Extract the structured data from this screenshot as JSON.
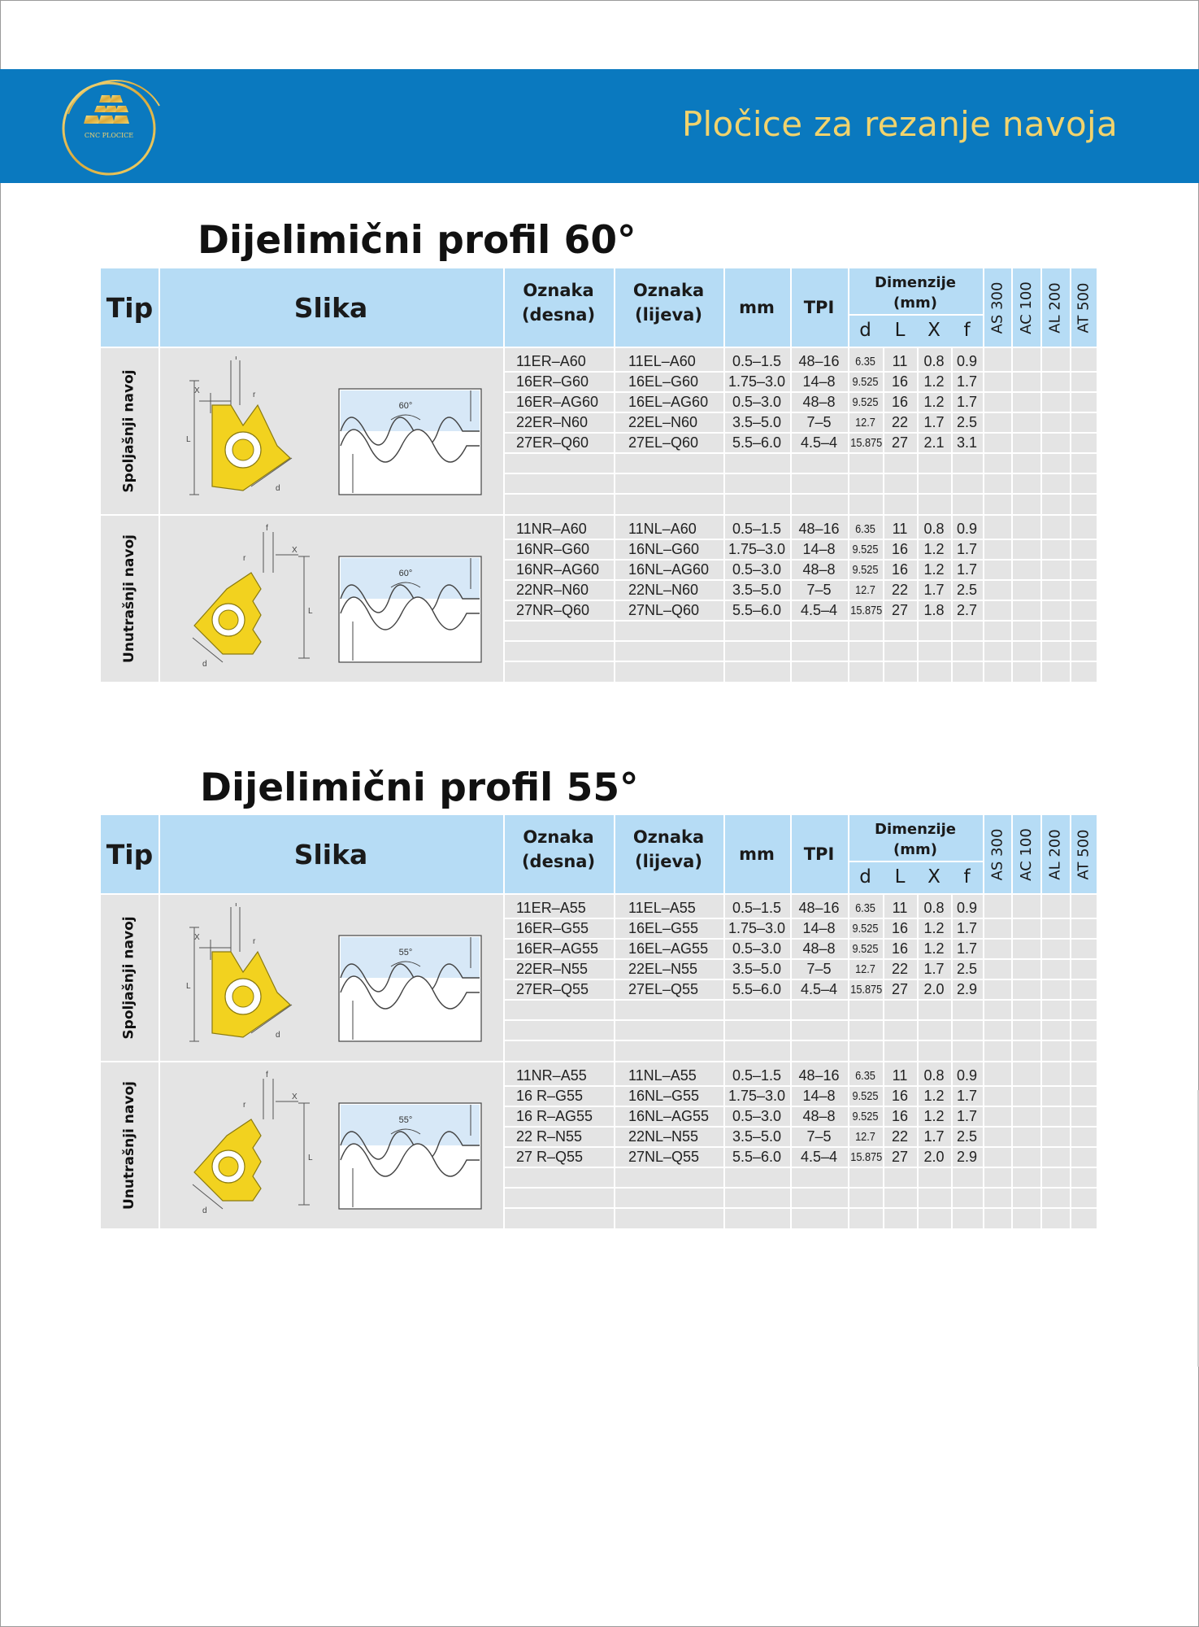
{
  "header": {
    "logo_text": "CNC PLOCICE",
    "title": "Pločice za rezanje navoja"
  },
  "colors": {
    "banner": "#0a79bf",
    "banner_title": "#f1d36d",
    "table_header": "#b6dcf5",
    "table_body": "#e4e4e4",
    "insert_yellow": "#f2d21f"
  },
  "columns": {
    "tip": "Tip",
    "slika": "Slika",
    "oznaka_desna_1": "Oznaka",
    "oznaka_desna_2": "(desna)",
    "oznaka_lijeva_1": "Oznaka",
    "oznaka_lijeva_2": "(lijeva)",
    "mm": "mm",
    "tpi": "TPI",
    "dimenzije_1": "Dimenzije",
    "dimenzije_2": "(mm)",
    "d": "d",
    "L": "L",
    "X": "X",
    "f": "f",
    "grades": [
      "AS 300",
      "AC 100",
      "AL 200",
      "AT 500"
    ]
  },
  "sections": [
    {
      "title": "Dijelimični profil 60°",
      "angle_label": "60°",
      "groups": [
        {
          "label": "Spoljašnji navoj",
          "rows": [
            [
              "11ER–A60",
              "11EL–A60",
              "0.5–1.5",
              "48–16",
              "6.35",
              "11",
              "0.8",
              "0.9"
            ],
            [
              "16ER–G60",
              "16EL–G60",
              "1.75–3.0",
              "14–8",
              "9.525",
              "16",
              "1.2",
              "1.7"
            ],
            [
              "16ER–AG60",
              "16EL–AG60",
              "0.5–3.0",
              "48–8",
              "9.525",
              "16",
              "1.2",
              "1.7"
            ],
            [
              "22ER–N60",
              "22EL–N60",
              "3.5–5.0",
              "7–5",
              "12.7",
              "22",
              "1.7",
              "2.5"
            ],
            [
              "27ER–Q60",
              "27EL–Q60",
              "5.5–6.0",
              "4.5–4",
              "15.875",
              "27",
              "2.1",
              "3.1"
            ]
          ]
        },
        {
          "label": "Unutrašnji navoj",
          "rows": [
            [
              "11NR–A60",
              "11NL–A60",
              "0.5–1.5",
              "48–16",
              "6.35",
              "11",
              "0.8",
              "0.9"
            ],
            [
              "16NR–G60",
              "16NL–G60",
              "1.75–3.0",
              "14–8",
              "9.525",
              "16",
              "1.2",
              "1.7"
            ],
            [
              "16NR–AG60",
              "16NL–AG60",
              "0.5–3.0",
              "48–8",
              "9.525",
              "16",
              "1.2",
              "1.7"
            ],
            [
              "22NR–N60",
              "22NL–N60",
              "3.5–5.0",
              "7–5",
              "12.7",
              "22",
              "1.7",
              "2.5"
            ],
            [
              "27NR–Q60",
              "27NL–Q60",
              "5.5–6.0",
              "4.5–4",
              "15.875",
              "27",
              "1.8",
              "2.7"
            ]
          ]
        }
      ]
    },
    {
      "title": "Dijelimični profil 55°",
      "angle_label": "55°",
      "groups": [
        {
          "label": "Spoljašnji navoj",
          "rows": [
            [
              "11ER–A55",
              "11EL–A55",
              "0.5–1.5",
              "48–16",
              "6.35",
              "11",
              "0.8",
              "0.9"
            ],
            [
              "16ER–G55",
              "16EL–G55",
              "1.75–3.0",
              "14–8",
              "9.525",
              "16",
              "1.2",
              "1.7"
            ],
            [
              "16ER–AG55",
              "16EL–AG55",
              "0.5–3.0",
              "48–8",
              "9.525",
              "16",
              "1.2",
              "1.7"
            ],
            [
              "22ER–N55",
              "22EL–N55",
              "3.5–5.0",
              "7–5",
              "12.7",
              "22",
              "1.7",
              "2.5"
            ],
            [
              "27ER–Q55",
              "27EL–Q55",
              "5.5–6.0",
              "4.5–4",
              "15.875",
              "27",
              "2.0",
              "2.9"
            ]
          ]
        },
        {
          "label": "Unutrašnji navoj",
          "rows": [
            [
              "11NR–A55",
              "11NL–A55",
              "0.5–1.5",
              "48–16",
              "6.35",
              "11",
              "0.8",
              "0.9"
            ],
            [
              "16  R–G55",
              "16NL–G55",
              "1.75–3.0",
              "14–8",
              "9.525",
              "16",
              "1.2",
              "1.7"
            ],
            [
              "16  R–AG55",
              "16NL–AG55",
              "0.5–3.0",
              "48–8",
              "9.525",
              "16",
              "1.2",
              "1.7"
            ],
            [
              "22  R–N55",
              "22NL–N55",
              "3.5–5.0",
              "7–5",
              "12.7",
              "22",
              "1.7",
              "2.5"
            ],
            [
              "27  R–Q55",
              "27NL–Q55",
              "5.5–6.0",
              "4.5–4",
              "15.875",
              "27",
              "2.0",
              "2.9"
            ]
          ]
        }
      ]
    }
  ]
}
